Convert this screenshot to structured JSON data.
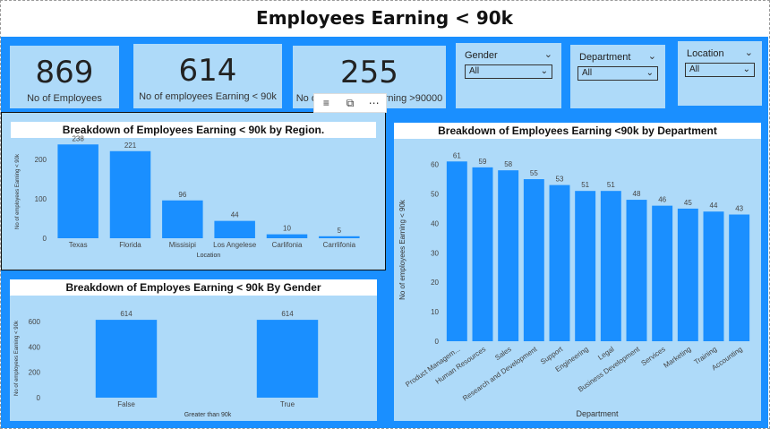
{
  "page": {
    "title": "Employees Earning < 90k"
  },
  "kpis": [
    {
      "value": "869",
      "label": "No of Employees"
    },
    {
      "value": "614",
      "label": "No of employees Earning < 90k"
    },
    {
      "value": "255",
      "label": "No of employees Earning >90000"
    }
  ],
  "slicers": [
    {
      "label": "Gender",
      "value": "All"
    },
    {
      "label": "Department",
      "value": "All"
    },
    {
      "label": "Location",
      "value": "All"
    }
  ],
  "visual_toolbar": {
    "icons": [
      "filter-icon",
      "focus-mode-icon",
      "more-options-icon"
    ]
  },
  "colors": {
    "canvas": "#1a8fff",
    "card": "#aedaf9",
    "bar": "#1a8fff",
    "title_bg": "#ffffff"
  },
  "chart_data": [
    {
      "type": "bar",
      "title": "Breakdown of Employees Earning < 90k by Region.",
      "xlabel": "Location",
      "ylabel": "No of employees Earning < 90k",
      "categories": [
        "Texas",
        "Florida",
        "Missisipi",
        "Los Angelese",
        "Carlifonia",
        "Carrlifonia"
      ],
      "values": [
        238,
        221,
        96,
        44,
        10,
        5
      ],
      "ylim": [
        0,
        250
      ],
      "yticks": [
        0,
        100,
        200
      ],
      "grid": false
    },
    {
      "type": "bar",
      "title": "Breakdown of Employes Earning < 90k By Gender",
      "xlabel": "Greater than 90k",
      "ylabel": "No of employees Earning < 90k",
      "categories": [
        "False",
        "True"
      ],
      "values": [
        614,
        614
      ],
      "ylim": [
        0,
        650
      ],
      "yticks": [
        0,
        200,
        400,
        600
      ],
      "grid": false
    },
    {
      "type": "bar",
      "title": "Breakdown of Employees Earning <90k by Department",
      "xlabel": "Department",
      "ylabel": "No of employees Earning < 90k",
      "categories": [
        "Product Managem...",
        "Human Resources",
        "Sales",
        "Research and Development",
        "Support",
        "Engineering",
        "Legal",
        "Business Development",
        "Services",
        "Marketing",
        "Training",
        "Accounting"
      ],
      "values": [
        61,
        59,
        58,
        55,
        53,
        51,
        51,
        48,
        46,
        45,
        44,
        43
      ],
      "ylim": [
        0,
        62
      ],
      "yticks": [
        0,
        10,
        20,
        30,
        40,
        50,
        60
      ],
      "grid": false
    }
  ]
}
